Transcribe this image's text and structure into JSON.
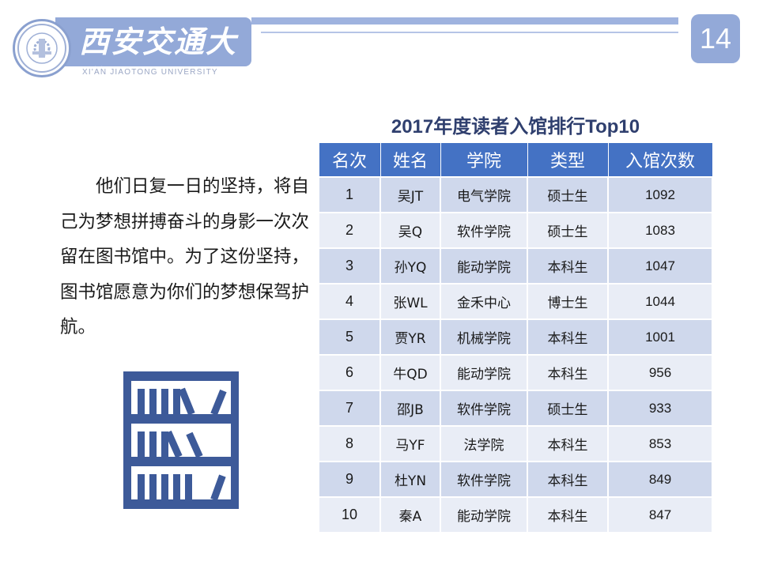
{
  "header": {
    "logo_cn": "西安交通大學",
    "logo_en": "XI'AN JIAOTONG UNIVERSITY",
    "page_number": "14",
    "brand_color": "#93a9d8"
  },
  "body_text": "他们日复一日的坚持，将自己为梦想拼搏奋斗的身影一次次留在图书馆中。为了这份坚持，图书馆愿意为你们的梦想保驾护航。",
  "icons": {
    "seal": "university-seal-icon",
    "bookshelf": "bookshelf-icon"
  },
  "table": {
    "title": "2017年度读者入馆排行Top10",
    "header_color": "#4472c4",
    "headers": [
      "名次",
      "姓名",
      "学院",
      "类型",
      "入馆次数"
    ],
    "rows": [
      [
        "1",
        "吴JT",
        "电气学院",
        "硕士生",
        "1092"
      ],
      [
        "2",
        "吴Q",
        "软件学院",
        "硕士生",
        "1083"
      ],
      [
        "3",
        "孙YQ",
        "能动学院",
        "本科生",
        "1047"
      ],
      [
        "4",
        "张WL",
        "金禾中心",
        "博士生",
        "1044"
      ],
      [
        "5",
        "贾YR",
        "机械学院",
        "本科生",
        "1001"
      ],
      [
        "6",
        "牛QD",
        "能动学院",
        "本科生",
        "956"
      ],
      [
        "7",
        "邵JB",
        "软件学院",
        "硕士生",
        "933"
      ],
      [
        "8",
        "马YF",
        "法学院",
        "本科生",
        "853"
      ],
      [
        "9",
        "杜YN",
        "软件学院",
        "本科生",
        "849"
      ],
      [
        "10",
        "秦A",
        "能动学院",
        "本科生",
        "847"
      ]
    ]
  }
}
